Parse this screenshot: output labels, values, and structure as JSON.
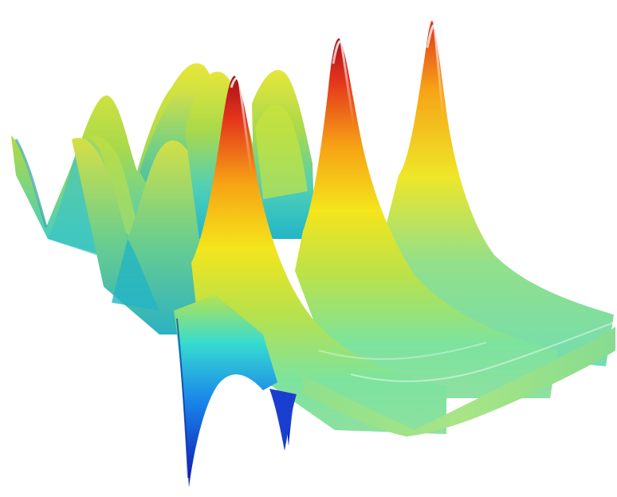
{
  "image": {
    "background": "#ffffff",
    "subject": "wave-surface",
    "colormap": [
      "#0a1ab8",
      "#1f6fe8",
      "#18d6e0",
      "#7ee39a",
      "#d8e64a",
      "#f2e21a",
      "#f5a416",
      "#e5431f",
      "#a3101a"
    ]
  }
}
